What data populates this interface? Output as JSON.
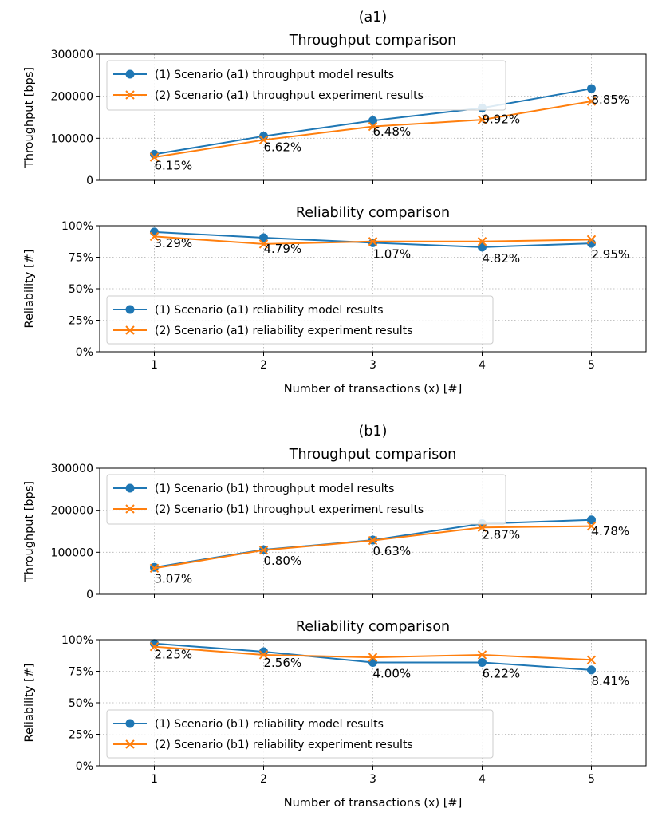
{
  "colors": {
    "model": "#1f77b4",
    "experiment": "#ff7f0e"
  },
  "chart_data": [
    {
      "id": "a1-throughput",
      "type": "line",
      "title_lines": [
        "(a1)",
        "Throughput comparison"
      ],
      "xlabel": "",
      "ylabel": "Throughput [bps]",
      "x": [
        1,
        2,
        3,
        4,
        5
      ],
      "xlim": [
        0.5,
        5.5
      ],
      "ylim": [
        0,
        300000
      ],
      "xticks": [
        1,
        2,
        3,
        4,
        5
      ],
      "xtick_labels_visible": false,
      "yticks": [
        0,
        100000,
        200000,
        300000
      ],
      "ytick_labels": [
        "0",
        "100000",
        "200000",
        "300000"
      ],
      "grid": true,
      "legend_position": "upper-left",
      "series": [
        {
          "name": "(1) Scenario (a1) throughput model results",
          "marker": "circle",
          "color_key": "model",
          "values": [
            62000,
            105000,
            142000,
            172000,
            218000
          ]
        },
        {
          "name": "(2) Scenario (a1) throughput experiment results",
          "marker": "x",
          "color_key": "experiment",
          "values": [
            55000,
            96000,
            128000,
            144000,
            188000
          ]
        }
      ],
      "annotations": [
        "6.15%",
        "6.62%",
        "6.48%",
        "9.92%",
        "8.85%"
      ]
    },
    {
      "id": "a1-reliability",
      "type": "line",
      "title_lines": [
        "Reliability comparison"
      ],
      "xlabel": "Number of transactions (x) [#]",
      "ylabel": "Reliability [#]",
      "x": [
        1,
        2,
        3,
        4,
        5
      ],
      "xlim": [
        0.5,
        5.5
      ],
      "ylim": [
        0,
        1
      ],
      "xticks": [
        1,
        2,
        3,
        4,
        5
      ],
      "xtick_labels_visible": true,
      "xtick_labels": [
        "1",
        "2",
        "3",
        "4",
        "5"
      ],
      "yticks": [
        0,
        0.25,
        0.5,
        0.75,
        1.0
      ],
      "ytick_labels": [
        "0%",
        "25%",
        "50%",
        "75%",
        "100%"
      ],
      "grid": true,
      "legend_position": "lower-left",
      "series": [
        {
          "name": "(1) Scenario (a1) reliability model results",
          "marker": "circle",
          "color_key": "model",
          "values": [
            0.95,
            0.905,
            0.865,
            0.83,
            0.86
          ]
        },
        {
          "name": "(2) Scenario (a1) reliability experiment results",
          "marker": "x",
          "color_key": "experiment",
          "values": [
            0.915,
            0.855,
            0.875,
            0.875,
            0.89
          ]
        }
      ],
      "annotations": [
        "3.29%",
        "4.79%",
        "1.07%",
        "4.82%",
        "2.95%"
      ]
    },
    {
      "id": "b1-throughput",
      "type": "line",
      "title_lines": [
        "(b1)",
        "Throughput comparison"
      ],
      "xlabel": "",
      "ylabel": "Throughput [bps]",
      "x": [
        1,
        2,
        3,
        4,
        5
      ],
      "xlim": [
        0.5,
        5.5
      ],
      "ylim": [
        0,
        300000
      ],
      "xticks": [
        1,
        2,
        3,
        4,
        5
      ],
      "xtick_labels_visible": false,
      "yticks": [
        0,
        100000,
        200000,
        300000
      ],
      "ytick_labels": [
        "0",
        "100000",
        "200000",
        "300000"
      ],
      "grid": true,
      "legend_position": "upper-left",
      "series": [
        {
          "name": "(1) Scenario (b1) throughput model results",
          "marker": "circle",
          "color_key": "model",
          "values": [
            64000,
            106000,
            129000,
            168000,
            177000
          ]
        },
        {
          "name": "(2) Scenario (b1) throughput experiment results",
          "marker": "x",
          "color_key": "experiment",
          "values": [
            62000,
            105000,
            128000,
            159000,
            162000
          ]
        }
      ],
      "annotations": [
        "3.07%",
        "0.80%",
        "0.63%",
        "2.87%",
        "4.78%"
      ]
    },
    {
      "id": "b1-reliability",
      "type": "line",
      "title_lines": [
        "Reliability comparison"
      ],
      "xlabel": "Number of transactions (x) [#]",
      "ylabel": "Reliability [#]",
      "x": [
        1,
        2,
        3,
        4,
        5
      ],
      "xlim": [
        0.5,
        5.5
      ],
      "ylim": [
        0,
        1
      ],
      "xticks": [
        1,
        2,
        3,
        4,
        5
      ],
      "xtick_labels_visible": true,
      "xtick_labels": [
        "1",
        "2",
        "3",
        "4",
        "5"
      ],
      "yticks": [
        0,
        0.25,
        0.5,
        0.75,
        1.0
      ],
      "ytick_labels": [
        "0%",
        "25%",
        "50%",
        "75%",
        "100%"
      ],
      "grid": true,
      "legend_position": "lower-left",
      "series": [
        {
          "name": "(1) Scenario (b1) reliability model results",
          "marker": "circle",
          "color_key": "model",
          "values": [
            0.97,
            0.905,
            0.82,
            0.82,
            0.76
          ]
        },
        {
          "name": "(2) Scenario (b1) reliability experiment results",
          "marker": "x",
          "color_key": "experiment",
          "values": [
            0.945,
            0.88,
            0.86,
            0.88,
            0.84
          ]
        }
      ],
      "annotations": [
        "2.25%",
        "2.56%",
        "4.00%",
        "6.22%",
        "8.41%"
      ]
    }
  ]
}
